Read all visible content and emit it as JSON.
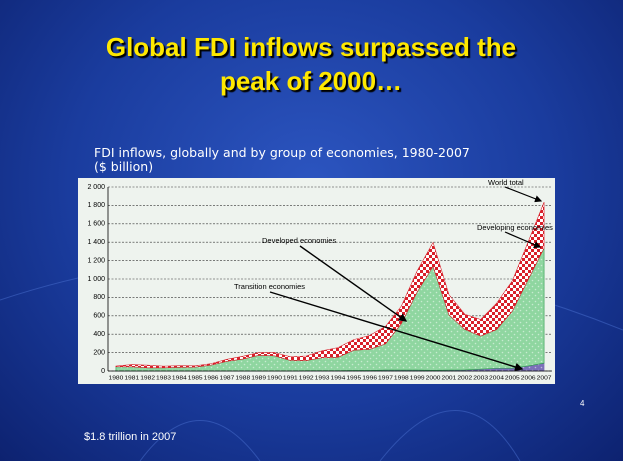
{
  "chart_data": {
    "type": "stacked_area",
    "title": "Global FDI inflows surpassed the peak of 2000…",
    "subtitle": "FDI inflows, globally and by group of economies, 1980-2007 ($ billion)",
    "categories": [
      "1980",
      "1981",
      "1982",
      "1983",
      "1984",
      "1985",
      "1986",
      "1987",
      "1988",
      "1989",
      "1990",
      "1991",
      "1992",
      "1993",
      "1994",
      "1995",
      "1996",
      "1997",
      "1998",
      "1999",
      "2000",
      "2001",
      "2002",
      "2003",
      "2004",
      "2005",
      "2006",
      "2007"
    ],
    "series": [
      {
        "name": "Transition economies",
        "color": "#7b70b8",
        "values": [
          0,
          0,
          0,
          0,
          0,
          0,
          0,
          0,
          0,
          0,
          0,
          0,
          3,
          4,
          4,
          6,
          6,
          10,
          10,
          10,
          7,
          10,
          12,
          20,
          30,
          31,
          55,
          86
        ]
      },
      {
        "name": "Developed economies",
        "color": "#8fd6a0",
        "values": [
          47,
          45,
          35,
          35,
          40,
          42,
          65,
          105,
          130,
          170,
          165,
          115,
          110,
          140,
          145,
          220,
          230,
          285,
          505,
          850,
          1130,
          600,
          440,
          360,
          420,
          620,
          940,
          1250
        ]
      },
      {
        "name": "Developing economies",
        "color": "#d8202a",
        "values": [
          7,
          25,
          28,
          18,
          18,
          14,
          15,
          22,
          30,
          30,
          35,
          40,
          50,
          75,
          105,
          115,
          150,
          190,
          190,
          230,
          260,
          220,
          165,
          180,
          285,
          330,
          410,
          500
        ]
      }
    ],
    "annotations": [
      "World total"
    ],
    "ylim": [
      0,
      2000
    ],
    "yticks": [
      {
        "value": 0,
        "label": "0"
      },
      {
        "value": 200,
        "label": "200"
      },
      {
        "value": 400,
        "label": "400"
      },
      {
        "value": 600,
        "label": "600"
      },
      {
        "value": 800,
        "label": "800"
      },
      {
        "value": 1000,
        "label": "1 000"
      },
      {
        "value": 1200,
        "label": "1 200"
      },
      {
        "value": 1400,
        "label": "1 400"
      },
      {
        "value": 1600,
        "label": "1 600"
      },
      {
        "value": 1800,
        "label": "1 800"
      },
      {
        "value": 2000,
        "label": "2 000"
      }
    ],
    "grid": true
  },
  "footer": "$1.8 trillion in 2007",
  "slide_number": "4"
}
